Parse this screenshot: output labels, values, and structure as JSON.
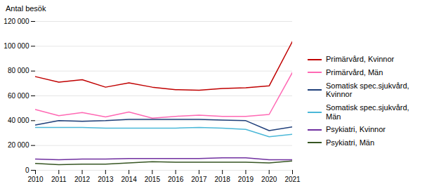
{
  "chart_data": {
    "type": "line",
    "ylabel": "Antal besök",
    "x": [
      2010,
      2011,
      2012,
      2013,
      2014,
      2015,
      2016,
      2017,
      2018,
      2019,
      2020,
      2021
    ],
    "series": [
      {
        "name": "Primärvård, Kvinnor",
        "color": "#C00000",
        "values": [
          75500,
          71000,
          73000,
          67000,
          70500,
          67000,
          65000,
          64500,
          66000,
          66500,
          68000,
          104000
        ]
      },
      {
        "name": "Primärvård, Män",
        "color": "#FF69B4",
        "values": [
          49000,
          44000,
          46500,
          43000,
          47000,
          42000,
          43500,
          44500,
          43500,
          43500,
          45000,
          79000
        ]
      },
      {
        "name": "Somatisk spec.sjukvård,\nKvinnor",
        "color": "#1F3F7A",
        "values": [
          36500,
          40000,
          39500,
          40000,
          41000,
          41000,
          41000,
          41000,
          40500,
          40000,
          32000,
          35000
        ]
      },
      {
        "name": "Somatisk spec.sjukvård,\nMän",
        "color": "#4BB8D8",
        "values": [
          34500,
          34500,
          34500,
          34000,
          34000,
          34000,
          34000,
          34500,
          34000,
          33000,
          27000,
          29000
        ]
      },
      {
        "name": "Psykiatri, Kvinnor",
        "color": "#7030A0",
        "values": [
          9000,
          8500,
          9000,
          9000,
          9500,
          9500,
          9500,
          9500,
          10000,
          10000,
          8500,
          8500
        ]
      },
      {
        "name": "Psykiatri, Män",
        "color": "#375623",
        "values": [
          5500,
          4500,
          5000,
          5000,
          6000,
          7000,
          6500,
          6500,
          6500,
          6500,
          6000,
          7500
        ]
      }
    ],
    "xlim": [
      2010,
      2021
    ],
    "xticks": [
      2010,
      2011,
      2012,
      2013,
      2014,
      2015,
      2016,
      2017,
      2018,
      2019,
      2020,
      2021
    ],
    "ylim": [
      0,
      120000
    ],
    "yticks": [
      0,
      {
        "value": 20000,
        "label": "20 000"
      },
      {
        "value": 40000,
        "label": "40 000"
      },
      {
        "value": 60000,
        "label": "60 000"
      },
      {
        "value": 80000,
        "label": "80 000"
      },
      {
        "value": 100000,
        "label": "100 000"
      },
      {
        "value": 120000,
        "label": "120 000"
      }
    ],
    "grid": true,
    "legend": "right"
  }
}
